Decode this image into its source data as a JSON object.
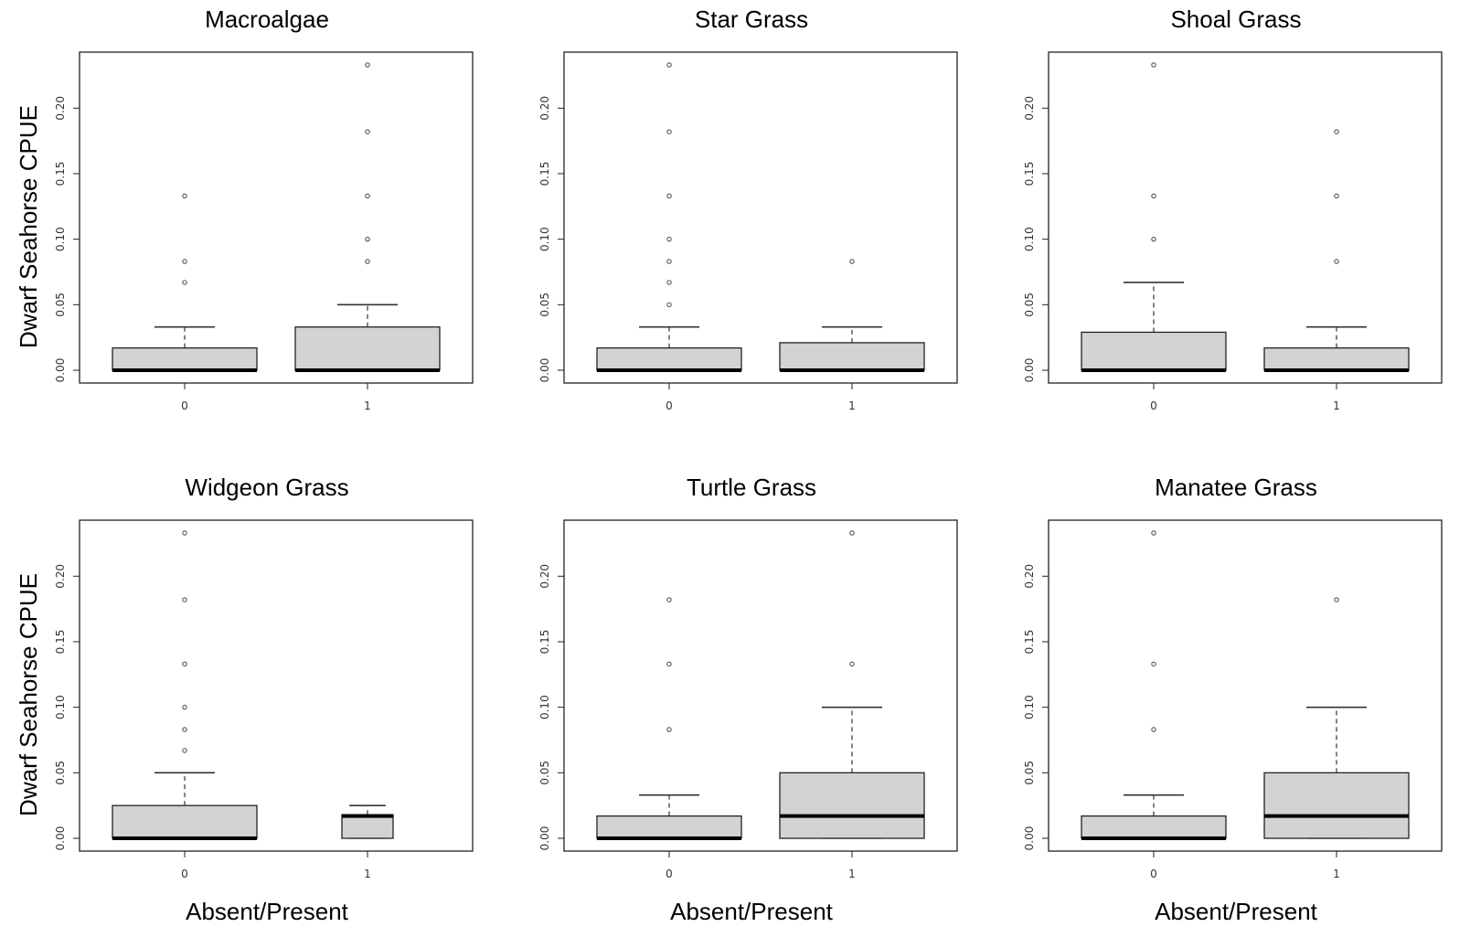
{
  "chart_data": [
    {
      "type": "box",
      "title": "Macroalgae",
      "ylabel": "Dwarf Seahorse CPUE",
      "xlabel": "",
      "categories": [
        "0",
        "1"
      ],
      "yticks": [
        "0.00",
        "0.05",
        "0.10",
        "0.15",
        "0.20"
      ],
      "ylim": [
        0,
        0.233
      ],
      "boxes": [
        {
          "q1": 0,
          "median": 0,
          "q3": 0.017,
          "whisker_low": 0,
          "whisker_high": 0.033,
          "outliers": [
            0.067,
            0.083,
            0.133
          ]
        },
        {
          "q1": 0,
          "median": 0,
          "q3": 0.033,
          "whisker_low": 0,
          "whisker_high": 0.05,
          "outliers": [
            0.083,
            0.1,
            0.133,
            0.182,
            0.233
          ]
        }
      ]
    },
    {
      "type": "box",
      "title": "Star Grass",
      "ylabel": "",
      "xlabel": "",
      "categories": [
        "0",
        "1"
      ],
      "yticks": [
        "0.00",
        "0.05",
        "0.10",
        "0.15",
        "0.20"
      ],
      "ylim": [
        0,
        0.233
      ],
      "boxes": [
        {
          "q1": 0,
          "median": 0,
          "q3": 0.017,
          "whisker_low": 0,
          "whisker_high": 0.033,
          "outliers": [
            0.05,
            0.067,
            0.083,
            0.1,
            0.133,
            0.182,
            0.233
          ]
        },
        {
          "q1": 0,
          "median": 0,
          "q3": 0.021,
          "whisker_low": 0,
          "whisker_high": 0.033,
          "outliers": [
            0.083
          ]
        }
      ]
    },
    {
      "type": "box",
      "title": "Shoal Grass",
      "ylabel": "",
      "xlabel": "",
      "categories": [
        "0",
        "1"
      ],
      "yticks": [
        "0.00",
        "0.05",
        "0.10",
        "0.15",
        "0.20"
      ],
      "ylim": [
        0,
        0.233
      ],
      "boxes": [
        {
          "q1": 0,
          "median": 0,
          "q3": 0.029,
          "whisker_low": 0,
          "whisker_high": 0.067,
          "outliers": [
            0.1,
            0.133,
            0.233
          ]
        },
        {
          "q1": 0,
          "median": 0,
          "q3": 0.017,
          "whisker_low": 0,
          "whisker_high": 0.033,
          "outliers": [
            0.083,
            0.133,
            0.182
          ]
        }
      ]
    },
    {
      "type": "box",
      "title": "Widgeon Grass",
      "ylabel": "Dwarf Seahorse CPUE",
      "xlabel": "Absent/Present",
      "categories": [
        "0",
        "1"
      ],
      "yticks": [
        "0.00",
        "0.05",
        "0.10",
        "0.15",
        "0.20"
      ],
      "ylim": [
        0,
        0.233
      ],
      "boxes": [
        {
          "q1": 0,
          "median": 0,
          "q3": 0.025,
          "whisker_low": 0,
          "whisker_high": 0.05,
          "outliers": [
            0.067,
            0.083,
            0.1,
            0.133,
            0.182,
            0.233
          ]
        },
        {
          "q1": 0,
          "median": 0.017,
          "q3": 0.018,
          "whisker_low": 0,
          "whisker_high": 0.025,
          "outliers": []
        }
      ]
    },
    {
      "type": "box",
      "title": "Turtle Grass",
      "ylabel": "",
      "xlabel": "Absent/Present",
      "categories": [
        "0",
        "1"
      ],
      "yticks": [
        "0.00",
        "0.05",
        "0.10",
        "0.15",
        "0.20"
      ],
      "ylim": [
        0,
        0.233
      ],
      "boxes": [
        {
          "q1": 0,
          "median": 0,
          "q3": 0.017,
          "whisker_low": 0,
          "whisker_high": 0.033,
          "outliers": [
            0.083,
            0.133,
            0.182
          ]
        },
        {
          "q1": 0,
          "median": 0.017,
          "q3": 0.05,
          "whisker_low": 0,
          "whisker_high": 0.1,
          "outliers": [
            0.133,
            0.233
          ]
        }
      ]
    },
    {
      "type": "box",
      "title": "Manatee Grass",
      "ylabel": "",
      "xlabel": "Absent/Present",
      "categories": [
        "0",
        "1"
      ],
      "yticks": [
        "0.00",
        "0.05",
        "0.10",
        "0.15",
        "0.20"
      ],
      "ylim": [
        0,
        0.233
      ],
      "boxes": [
        {
          "q1": 0,
          "median": 0,
          "q3": 0.017,
          "whisker_low": 0,
          "whisker_high": 0.033,
          "outliers": [
            0.083,
            0.133,
            0.233
          ]
        },
        {
          "q1": 0,
          "median": 0.017,
          "q3": 0.05,
          "whisker_low": 0,
          "whisker_high": 0.1,
          "outliers": [
            0.182
          ]
        }
      ]
    }
  ]
}
